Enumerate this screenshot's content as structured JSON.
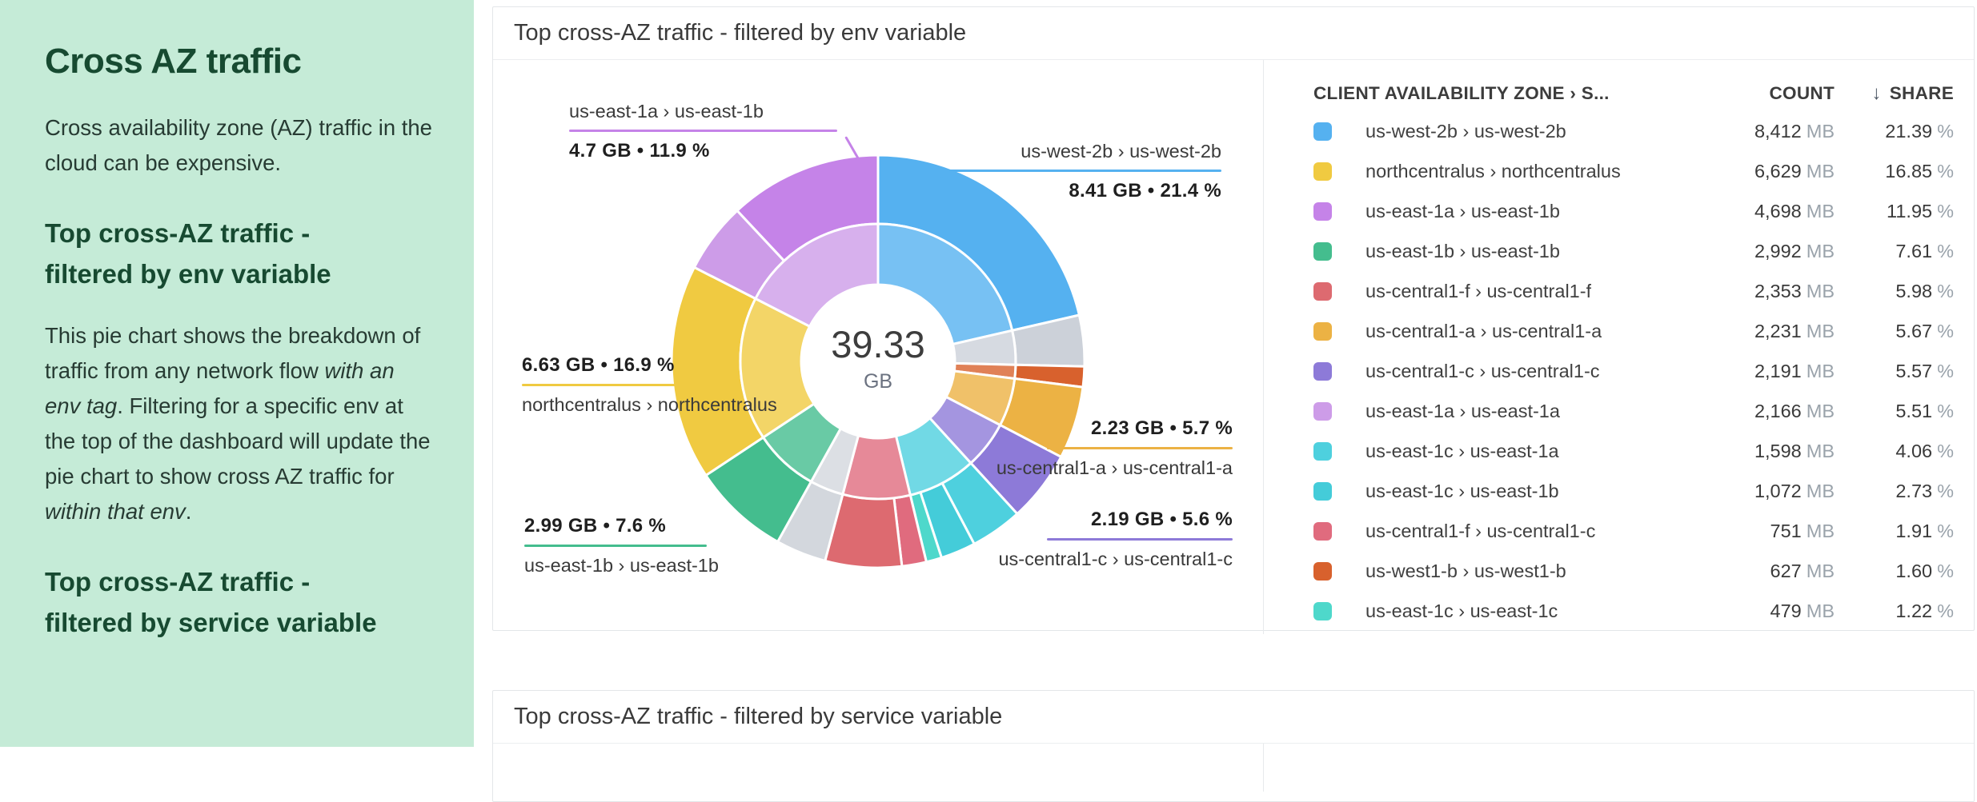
{
  "sidebar": {
    "title": "Cross AZ traffic",
    "p1": "Cross availability zone (AZ) traffic in the cloud can be expensive.",
    "h2": "Top cross-AZ traffic - filtered by env variable",
    "p2_parts": [
      "This pie chart shows the breakdown of traffic from any network flow ",
      "with an env tag",
      ". Filtering for a specific env at the top of the dashboard will update the pie chart to show cross AZ traffic for ",
      "within that env",
      "."
    ],
    "h3": "Top cross-AZ traffic - filtered by service variable"
  },
  "panel_env": {
    "title": "Top cross-AZ traffic - filtered by env variable",
    "center_value": "39.33",
    "center_unit": "GB",
    "callouts": [
      {
        "top": "us-east-1a › us-east-1b",
        "bottom": "4.7 GB • 11.9 %",
        "color": "#c583e8"
      },
      {
        "top": "us-west-2b › us-west-2b",
        "bottom": "8.41 GB • 21.4 %",
        "color": "#55b1f0"
      },
      {
        "top": "6.63 GB • 16.9 %",
        "bottom": "northcentralus › northcentralus",
        "color": "#f0ca41"
      },
      {
        "top": "2.99 GB • 7.6 %",
        "bottom": "us-east-1b › us-east-1b",
        "color": "#44bd8e"
      },
      {
        "top": "2.23 GB • 5.7 %",
        "bottom": "us-central1-a › us-central1-a",
        "color": "#ecb244"
      },
      {
        "top": "2.19 GB • 5.6 %",
        "bottom": "us-central1-c › us-central1-c",
        "color": "#8d7ad8"
      }
    ],
    "table": {
      "header": {
        "zone": "CLIENT AVAILABILITY ZONE › S...",
        "count": "COUNT",
        "share": "SHARE",
        "sort_icon": "↓"
      },
      "rows": [
        {
          "zone": "us-west-2b › us-west-2b",
          "count": "8,412",
          "count_unit": "MB",
          "share": "21.39",
          "share_unit": "%",
          "color": "#55b1f0"
        },
        {
          "zone": "northcentralus › northcentralus",
          "count": "6,629",
          "count_unit": "MB",
          "share": "16.85",
          "share_unit": "%",
          "color": "#f0ca41"
        },
        {
          "zone": "us-east-1a › us-east-1b",
          "count": "4,698",
          "count_unit": "MB",
          "share": "11.95",
          "share_unit": "%",
          "color": "#c583e8"
        },
        {
          "zone": "us-east-1b › us-east-1b",
          "count": "2,992",
          "count_unit": "MB",
          "share": "7.61",
          "share_unit": "%",
          "color": "#44bd8e"
        },
        {
          "zone": "us-central1-f › us-central1-f",
          "count": "2,353",
          "count_unit": "MB",
          "share": "5.98",
          "share_unit": "%",
          "color": "#dd6a70"
        },
        {
          "zone": "us-central1-a › us-central1-a",
          "count": "2,231",
          "count_unit": "MB",
          "share": "5.67",
          "share_unit": "%",
          "color": "#ecb244"
        },
        {
          "zone": "us-central1-c › us-central1-c",
          "count": "2,191",
          "count_unit": "MB",
          "share": "5.57",
          "share_unit": "%",
          "color": "#8d7ad8"
        },
        {
          "zone": "us-east-1a › us-east-1a",
          "count": "2,166",
          "count_unit": "MB",
          "share": "5.51",
          "share_unit": "%",
          "color": "#cd9ce8"
        },
        {
          "zone": "us-east-1c › us-east-1a",
          "count": "1,598",
          "count_unit": "MB",
          "share": "4.06",
          "share_unit": "%",
          "color": "#4ed0de"
        },
        {
          "zone": "us-east-1c › us-east-1b",
          "count": "1,072",
          "count_unit": "MB",
          "share": "2.73",
          "share_unit": "%",
          "color": "#44ccd9"
        },
        {
          "zone": "us-central1-f › us-central1-c",
          "count": "751",
          "count_unit": "MB",
          "share": "1.91",
          "share_unit": "%",
          "color": "#e06b7e"
        },
        {
          "zone": "us-west1-b › us-west1-b",
          "count": "627",
          "count_unit": "MB",
          "share": "1.60",
          "share_unit": "%",
          "color": "#d8612d"
        },
        {
          "zone": "us-east-1c › us-east-1c",
          "count": "479",
          "count_unit": "MB",
          "share": "1.22",
          "share_unit": "%",
          "color": "#4ed8cb"
        }
      ]
    }
  },
  "panel_service": {
    "title": "Top cross-AZ traffic - filtered by service variable"
  },
  "chart_data": {
    "type": "pie",
    "variant": "sunburst-donut",
    "title": "Top cross-AZ traffic - filtered by env variable",
    "center": {
      "value": "39.33",
      "unit": "GB"
    },
    "total_gb": 39.33,
    "legend_position": "right-table",
    "slices": [
      {
        "pair": "us-west-2b › us-west-2b",
        "client": "us-west-2b",
        "share_pct": 21.39,
        "mb": 8412,
        "color": "#55b1f0"
      },
      {
        "pair": "other",
        "client": "other",
        "share_pct": 4.0,
        "color": "#ccd1d9"
      },
      {
        "pair": "us-west1-b › us-west1-b",
        "client": "us-west1-b",
        "share_pct": 1.6,
        "mb": 627,
        "color": "#d8612d"
      },
      {
        "pair": "us-central1-a › us-central1-a",
        "client": "us-central1-a",
        "share_pct": 5.67,
        "mb": 2231,
        "color": "#ecb244"
      },
      {
        "pair": "us-central1-c › us-central1-c",
        "client": "us-central1-c",
        "share_pct": 5.57,
        "mb": 2191,
        "color": "#8d7ad8"
      },
      {
        "pair": "us-east-1c › us-east-1a",
        "client": "us-east-1c",
        "share_pct": 4.06,
        "mb": 1598,
        "color": "#4ed0de"
      },
      {
        "pair": "us-east-1c › us-east-1b",
        "client": "us-east-1c",
        "share_pct": 2.73,
        "mb": 1072,
        "color": "#44ccd9"
      },
      {
        "pair": "us-east-1c › us-east-1c",
        "client": "us-east-1c",
        "share_pct": 1.22,
        "mb": 479,
        "color": "#4ed8cb"
      },
      {
        "pair": "us-central1-f › us-central1-c",
        "client": "us-central1-f",
        "share_pct": 1.91,
        "mb": 751,
        "color": "#e06b7e"
      },
      {
        "pair": "us-central1-f › us-central1-f",
        "client": "us-central1-f",
        "share_pct": 5.98,
        "mb": 2353,
        "color": "#dd6a70"
      },
      {
        "pair": "other",
        "client": "other2",
        "share_pct": 3.95,
        "color": "#d3d7dd"
      },
      {
        "pair": "us-east-1b › us-east-1b",
        "client": "us-east-1b",
        "share_pct": 7.61,
        "mb": 2992,
        "color": "#44bd8e"
      },
      {
        "pair": "northcentralus › northcentralus",
        "client": "northcentralus",
        "share_pct": 16.85,
        "mb": 6629,
        "color": "#f0ca41"
      },
      {
        "pair": "us-east-1a › us-east-1a",
        "client": "us-east-1a",
        "share_pct": 5.51,
        "mb": 2166,
        "color": "#cd9ce8"
      },
      {
        "pair": "us-east-1a › us-east-1b",
        "client": "us-east-1a",
        "share_pct": 11.95,
        "mb": 4698,
        "color": "#c583e8"
      }
    ]
  }
}
